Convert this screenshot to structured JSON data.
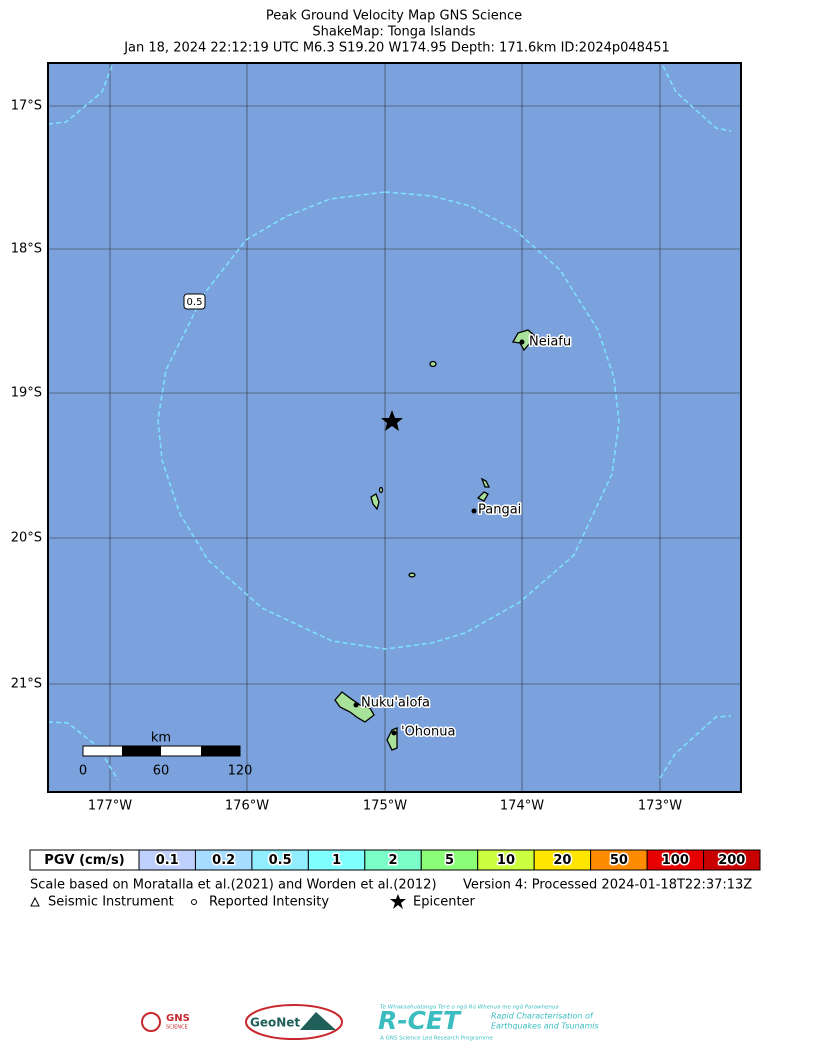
{
  "header": {
    "title": "Peak Ground Velocity Map GNS Science",
    "subtitle": "ShakeMap: Tonga Islands",
    "details": "Jan 18, 2024 22:12:19 UTC M6.3 S19.20 W174.95 Depth: 171.6km ID:2024p048451"
  },
  "map": {
    "lat_labels": [
      "17°S",
      "18°S",
      "19°S",
      "20°S",
      "21°S"
    ],
    "lon_labels": [
      "177°W",
      "176°W",
      "175°W",
      "174°W",
      "173°W"
    ],
    "places": [
      "Neiafu",
      "Pangai",
      "Nuku'alofa",
      "'Ohonua"
    ],
    "contour_label": "0.5",
    "scale_bar": {
      "unit": "km",
      "ticks": [
        "0",
        "60",
        "120"
      ]
    }
  },
  "legend": {
    "label": "PGV (cm/s)",
    "bins": [
      {
        "label": "0.1",
        "color": "#bfd0ff"
      },
      {
        "label": "0.2",
        "color": "#a6dcff"
      },
      {
        "label": "0.5",
        "color": "#90eefe"
      },
      {
        "label": "1",
        "color": "#80ffff"
      },
      {
        "label": "2",
        "color": "#7affc8"
      },
      {
        "label": "5",
        "color": "#8cff78"
      },
      {
        "label": "10",
        "color": "#ccff40"
      },
      {
        "label": "20",
        "color": "#ffe600"
      },
      {
        "label": "50",
        "color": "#ff8c00"
      },
      {
        "label": "100",
        "color": "#e60000"
      },
      {
        "label": "200",
        "color": "#c80000"
      }
    ]
  },
  "footer": {
    "note": "Scale based on Moratalla et al.(2021) and Worden et al.(2012)",
    "version": "Version 4: Processed 2024-01-18T22:37:13Z",
    "symbols": [
      "Seismic Instrument",
      "Reported Intensity",
      "Epicenter"
    ]
  },
  "logos": {
    "gns": "GNS",
    "gns_sub": "SCIENCE",
    "geonet": "GeoNet",
    "rcet_tagline": "Te Whakaahuatanga Tere o ngā Rū Whenua me ngā Parawhenua",
    "rcet": "R-CET",
    "rcet_line1": "Rapid Characterisation of",
    "rcet_line2": "Earthquakes and Tsunamis",
    "rcet_footer": "A GNS Science Led Research Programme"
  }
}
